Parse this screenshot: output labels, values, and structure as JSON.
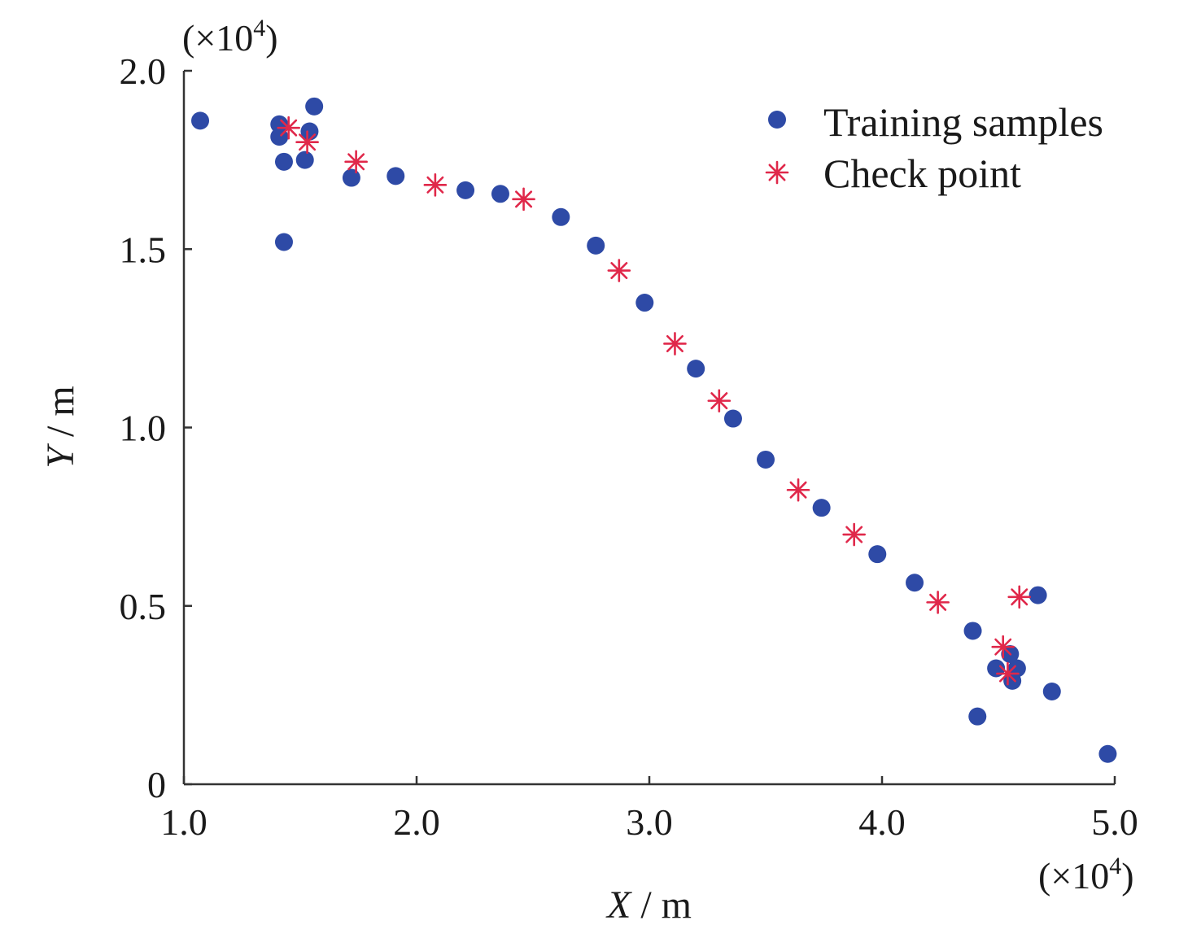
{
  "chart_data": {
    "type": "scatter",
    "xlabel_var": "X",
    "xlabel_unit": " / m",
    "ylabel_var": "Y",
    "ylabel_unit": " / m",
    "x_multiplier": {
      "prefix": "(×10",
      "exp": "4",
      "suffix": ")"
    },
    "y_multiplier": {
      "prefix": "(×10",
      "exp": "4",
      "suffix": ")"
    },
    "xlim": [
      1.0,
      5.0
    ],
    "ylim": [
      0,
      2.0
    ],
    "x_ticks": [
      1.0,
      2.0,
      3.0,
      4.0,
      5.0
    ],
    "x_tick_labels": [
      "1.0",
      "2.0",
      "3.0",
      "4.0",
      "5.0"
    ],
    "y_ticks": [
      0,
      0.5,
      1.0,
      1.5,
      2.0
    ],
    "y_tick_labels": [
      "0",
      "0.5",
      "1.0",
      "1.5",
      "2.0"
    ],
    "colors": {
      "training": "#2e4aa6",
      "check": "#e0284a",
      "axis": "#333333"
    },
    "legend_position": "top-right",
    "series": [
      {
        "name": "Training samples",
        "marker": "circle",
        "points": [
          [
            1.07,
            1.86
          ],
          [
            1.41,
            1.85
          ],
          [
            1.41,
            1.815
          ],
          [
            1.43,
            1.745
          ],
          [
            1.43,
            1.52
          ],
          [
            1.54,
            1.83
          ],
          [
            1.56,
            1.9
          ],
          [
            1.52,
            1.75
          ],
          [
            1.72,
            1.7
          ],
          [
            1.91,
            1.705
          ],
          [
            2.21,
            1.665
          ],
          [
            2.36,
            1.655
          ],
          [
            2.62,
            1.59
          ],
          [
            2.77,
            1.51
          ],
          [
            2.98,
            1.35
          ],
          [
            3.2,
            1.165
          ],
          [
            3.36,
            1.025
          ],
          [
            3.5,
            0.91
          ],
          [
            3.74,
            0.775
          ],
          [
            3.98,
            0.645
          ],
          [
            4.14,
            0.565
          ],
          [
            4.39,
            0.43
          ],
          [
            4.41,
            0.19
          ],
          [
            4.49,
            0.325
          ],
          [
            4.55,
            0.365
          ],
          [
            4.58,
            0.325
          ],
          [
            4.56,
            0.29
          ],
          [
            4.67,
            0.53
          ],
          [
            4.73,
            0.26
          ],
          [
            4.97,
            0.085
          ]
        ]
      },
      {
        "name": "Check point",
        "marker": "asterisk",
        "points": [
          [
            1.45,
            1.84
          ],
          [
            1.53,
            1.8
          ],
          [
            1.74,
            1.745
          ],
          [
            2.08,
            1.68
          ],
          [
            2.46,
            1.64
          ],
          [
            2.87,
            1.44
          ],
          [
            3.11,
            1.235
          ],
          [
            3.3,
            1.075
          ],
          [
            3.64,
            0.825
          ],
          [
            3.88,
            0.7
          ],
          [
            4.24,
            0.51
          ],
          [
            4.52,
            0.385
          ],
          [
            4.54,
            0.31
          ],
          [
            4.59,
            0.525
          ]
        ]
      }
    ]
  }
}
